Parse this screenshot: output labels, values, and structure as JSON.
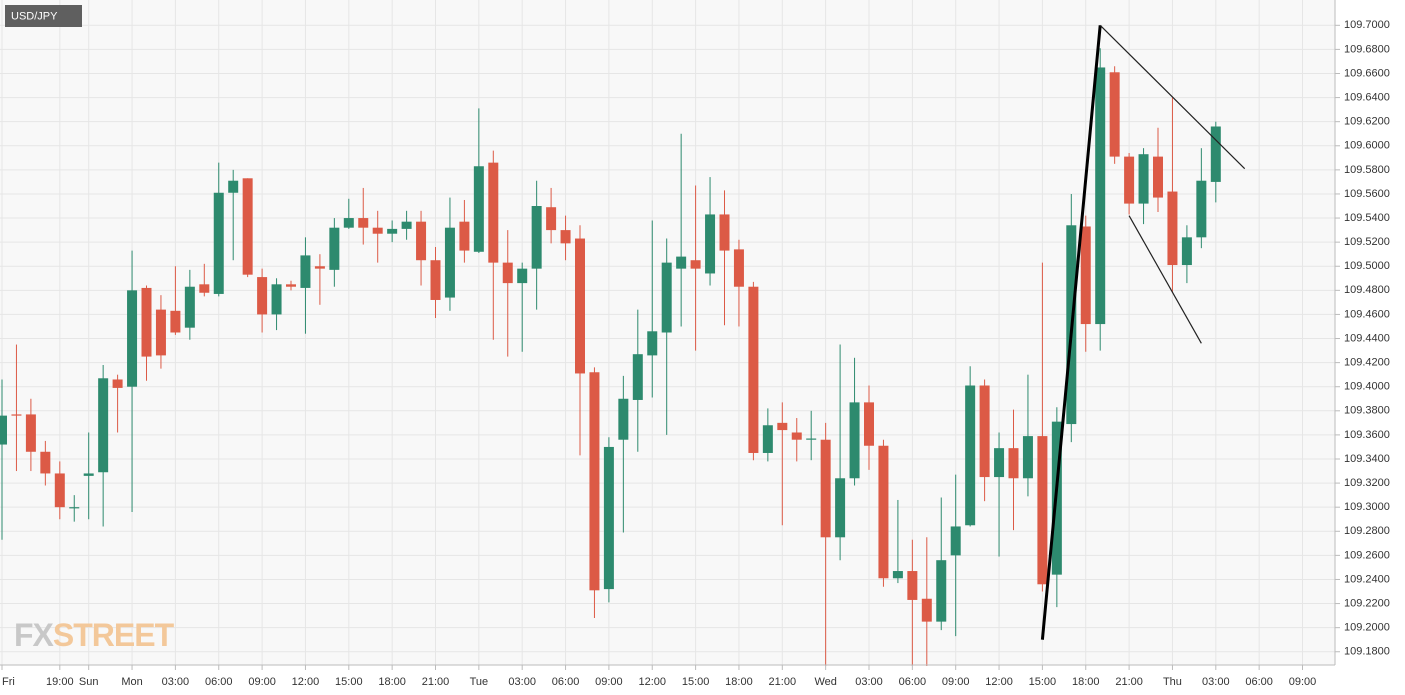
{
  "chart_data": {
    "type": "candlestick",
    "title": "USD/JPY",
    "watermark": [
      "FX",
      "STREET"
    ],
    "up_color": "#2d8a6e",
    "down_color": "#dc5a46",
    "grid": true,
    "categories": [
      "Fri",
      null,
      null,
      null,
      "19:00",
      null,
      "Sun",
      null,
      null,
      "Mon",
      null,
      null,
      "03:00",
      null,
      null,
      "06:00",
      null,
      null,
      "09:00",
      null,
      null,
      "12:00",
      null,
      null,
      "15:00",
      null,
      null,
      "18:00",
      null,
      null,
      "21:00",
      null,
      null,
      "Tue",
      null,
      null,
      "03:00",
      null,
      null,
      "06:00",
      null,
      null,
      "09:00",
      null,
      null,
      "12:00",
      null,
      null,
      "15:00",
      null,
      null,
      "18:00",
      null,
      null,
      "21:00",
      null,
      null,
      "Wed",
      null,
      null,
      "03:00",
      null,
      null,
      "06:00",
      null,
      null,
      "09:00",
      null,
      null,
      "12:00",
      null,
      null,
      "15:00",
      null,
      null,
      "18:00",
      null,
      null,
      "21:00",
      null,
      null,
      "Thu",
      null,
      null,
      "03:00",
      null,
      null,
      "06:00",
      null,
      null,
      "09:00"
    ],
    "open": [
      109.352,
      109.377,
      109.377,
      109.346,
      109.328,
      109.299,
      109.326,
      109.329,
      109.406,
      109.4,
      109.482,
      109.464,
      109.463,
      109.449,
      109.485,
      109.477,
      109.561,
      109.573,
      109.491,
      109.46,
      109.485,
      109.482,
      109.5,
      109.497,
      109.532,
      109.54,
      109.532,
      109.527,
      109.531,
      109.537,
      109.505,
      109.474,
      109.537,
      109.512,
      109.586,
      109.503,
      109.486,
      109.498,
      109.549,
      109.53,
      109.523,
      109.412,
      109.232,
      109.356,
      109.389,
      109.426,
      109.445,
      109.498,
      109.505,
      109.494,
      109.543,
      109.514,
      109.483,
      109.345,
      109.37,
      109.362,
      109.356,
      109.356,
      109.275,
      109.324,
      109.387,
      109.351,
      109.241,
      109.247,
      109.224,
      109.205,
      109.26,
      109.285,
      109.401,
      109.325,
      109.349,
      109.324,
      109.359,
      109.244,
      109.369,
      109.533,
      109.452,
      109.661,
      109.591,
      109.552,
      109.591,
      109.562,
      109.501,
      109.524,
      109.57,
      null,
      null,
      null,
      null,
      null,
      null
    ],
    "high": [
      109.406,
      109.435,
      109.39,
      109.355,
      109.338,
      109.31,
      109.362,
      109.418,
      109.41,
      109.513,
      109.484,
      109.476,
      109.5,
      109.497,
      109.502,
      109.586,
      109.58,
      109.573,
      109.498,
      109.49,
      109.488,
      109.524,
      109.51,
      109.54,
      109.556,
      109.565,
      109.546,
      109.538,
      109.546,
      109.546,
      109.516,
      109.557,
      109.555,
      109.631,
      109.596,
      109.53,
      109.503,
      109.571,
      109.565,
      109.542,
      109.534,
      109.416,
      109.358,
      109.409,
      109.464,
      109.538,
      109.523,
      109.61,
      109.567,
      109.574,
      109.563,
      109.522,
      109.487,
      109.382,
      109.387,
      109.374,
      109.38,
      109.37,
      109.435,
      109.424,
      109.401,
      109.356,
      109.306,
      109.273,
      109.275,
      109.308,
      109.327,
      109.417,
      109.406,
      109.362,
      109.381,
      109.41,
      109.503,
      109.383,
      109.56,
      109.542,
      109.681,
      109.666,
      109.594,
      109.598,
      109.615,
      109.64,
      109.534,
      109.598,
      109.62,
      null,
      null,
      null,
      null,
      null,
      null
    ],
    "low": [
      109.273,
      109.33,
      109.33,
      109.318,
      109.29,
      109.288,
      109.29,
      109.284,
      109.362,
      109.296,
      109.405,
      109.415,
      109.443,
      109.439,
      109.475,
      109.475,
      109.505,
      109.491,
      109.445,
      109.447,
      109.48,
      109.444,
      109.468,
      109.483,
      109.531,
      109.518,
      109.503,
      109.52,
      109.522,
      109.484,
      109.457,
      109.463,
      109.503,
      109.511,
      109.439,
      109.425,
      109.429,
      109.464,
      109.519,
      109.505,
      109.343,
      109.208,
      109.221,
      109.279,
      109.346,
      109.391,
      109.36,
      109.45,
      109.43,
      109.484,
      109.451,
      109.45,
      109.339,
      109.338,
      109.285,
      109.338,
      109.339,
      109.167,
      109.256,
      109.318,
      109.331,
      109.234,
      109.237,
      109.167,
      109.167,
      109.198,
      109.193,
      109.284,
      109.305,
      109.259,
      109.281,
      109.309,
      109.23,
      109.217,
      109.354,
      109.429,
      109.43,
      109.585,
      109.543,
      109.535,
      109.545,
      109.478,
      109.486,
      109.515,
      109.553,
      null,
      null,
      null,
      null,
      null,
      null
    ],
    "close": [
      109.376,
      109.376,
      109.346,
      109.328,
      109.3,
      109.3,
      109.328,
      109.407,
      109.399,
      109.48,
      109.425,
      109.426,
      109.445,
      109.483,
      109.478,
      109.561,
      109.571,
      109.493,
      109.46,
      109.485,
      109.483,
      109.509,
      109.498,
      109.532,
      109.54,
      109.532,
      109.527,
      109.531,
      109.537,
      109.505,
      109.472,
      109.532,
      109.513,
      109.583,
      109.503,
      109.486,
      109.498,
      109.55,
      109.53,
      109.519,
      109.411,
      109.231,
      109.35,
      109.39,
      109.427,
      109.446,
      109.503,
      109.508,
      109.498,
      109.543,
      109.513,
      109.483,
      109.345,
      109.368,
      109.364,
      109.356,
      109.357,
      109.275,
      109.324,
      109.387,
      109.351,
      109.241,
      109.247,
      109.223,
      109.205,
      109.256,
      109.284,
      109.401,
      109.325,
      109.349,
      109.324,
      109.359,
      109.236,
      109.371,
      109.534,
      109.452,
      109.665,
      109.591,
      109.552,
      109.593,
      109.557,
      109.501,
      109.524,
      109.571,
      109.616,
      null,
      null,
      null,
      null,
      null,
      null
    ],
    "lines": [
      {
        "x": [
          72,
          76
        ],
        "y": [
          109.19,
          109.7
        ],
        "width": 3,
        "color": "#000000"
      },
      {
        "x": [
          76,
          86
        ],
        "y": [
          109.7,
          109.581
        ],
        "width": 1.2,
        "color": "#222222"
      },
      {
        "x": [
          78,
          83
        ],
        "y": [
          109.542,
          109.436
        ],
        "width": 1.2,
        "color": "#222222"
      }
    ],
    "ylim": [
      109.169,
      109.721
    ],
    "yticks": [
      {
        "value": 109.18,
        "label": "109.1800"
      },
      {
        "value": 109.2,
        "label": "109.2000"
      },
      {
        "value": 109.22,
        "label": "109.2200"
      },
      {
        "value": 109.24,
        "label": "109.2400"
      },
      {
        "value": 109.26,
        "label": "109.2600"
      },
      {
        "value": 109.28,
        "label": "109.2800"
      },
      {
        "value": 109.3,
        "label": "109.3000"
      },
      {
        "value": 109.32,
        "label": "109.3200"
      },
      {
        "value": 109.34,
        "label": "109.3400"
      },
      {
        "value": 109.36,
        "label": "109.3600"
      },
      {
        "value": 109.38,
        "label": "109.3800"
      },
      {
        "value": 109.4,
        "label": "109.4000"
      },
      {
        "value": 109.42,
        "label": "109.4200"
      },
      {
        "value": 109.44,
        "label": "109.4400"
      },
      {
        "value": 109.46,
        "label": "109.4600"
      },
      {
        "value": 109.48,
        "label": "109.4800"
      },
      {
        "value": 109.5,
        "label": "109.5000"
      },
      {
        "value": 109.52,
        "label": "109.5200"
      },
      {
        "value": 109.54,
        "label": "109.5400"
      },
      {
        "value": 109.56,
        "label": "109.5600"
      },
      {
        "value": 109.58,
        "label": "109.5800"
      },
      {
        "value": 109.6,
        "label": "109.6000"
      },
      {
        "value": 109.62,
        "label": "109.6200"
      },
      {
        "value": 109.64,
        "label": "109.6400"
      },
      {
        "value": 109.66,
        "label": "109.6600"
      },
      {
        "value": 109.68,
        "label": "109.6800"
      },
      {
        "value": 109.7,
        "label": "109.7000"
      }
    ]
  }
}
